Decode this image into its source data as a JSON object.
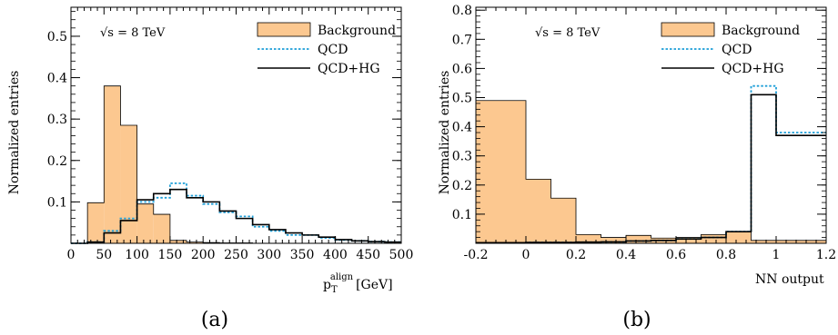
{
  "chart_data": [
    {
      "type": "histogram",
      "panel_label": "(a)",
      "annotation": "√s = 8 TeV",
      "xlabel": "p_T^align [GeV]",
      "xlabel_main": "p",
      "xlabel_sub": "T",
      "xlabel_sup": "align",
      "xlabel_unit": "[GeV]",
      "ylabel": "Normalized entries",
      "xlim": [
        0,
        500
      ],
      "ylim": [
        0,
        0.57
      ],
      "x_ticks": [
        "0",
        "50",
        "100",
        "150",
        "200",
        "250",
        "300",
        "350",
        "400",
        "450",
        "500"
      ],
      "y_ticks": [
        "0.1",
        "0.2",
        "0.3",
        "0.4",
        "0.5"
      ],
      "y_tick_values": [
        0.1,
        0.2,
        0.3,
        0.4,
        0.5
      ],
      "x_tick_values": [
        0,
        50,
        100,
        150,
        200,
        250,
        300,
        350,
        400,
        450,
        500
      ],
      "bin_edges": [
        0,
        25,
        50,
        75,
        100,
        125,
        150,
        175,
        200,
        225,
        250,
        275,
        300,
        325,
        350,
        375,
        400,
        425,
        450,
        475,
        500
      ],
      "legend_position": "top-right",
      "series": [
        {
          "name": "Background",
          "style": "filled",
          "color": "#fcc890",
          "values": [
            0.0,
            0.098,
            0.38,
            0.285,
            0.095,
            0.07,
            0.007,
            0.003,
            0.002,
            0.001,
            0.001,
            0.0,
            0.0,
            0.0,
            0.0,
            0.0,
            0.0,
            0.0,
            0.0,
            0.0
          ]
        },
        {
          "name": "QCD",
          "style": "dotted",
          "color": "#1f9fd8",
          "values": [
            0.0,
            0.003,
            0.03,
            0.06,
            0.1,
            0.11,
            0.145,
            0.115,
            0.095,
            0.075,
            0.065,
            0.04,
            0.03,
            0.02,
            0.02,
            0.013,
            0.008,
            0.006,
            0.004,
            0.003
          ]
        },
        {
          "name": "QCD+HG",
          "style": "solid",
          "color": "#000000",
          "values": [
            0.0,
            0.003,
            0.025,
            0.055,
            0.105,
            0.12,
            0.13,
            0.11,
            0.1,
            0.078,
            0.06,
            0.045,
            0.033,
            0.025,
            0.02,
            0.015,
            0.009,
            0.006,
            0.004,
            0.003
          ]
        }
      ]
    },
    {
      "type": "histogram",
      "panel_label": "(b)",
      "annotation": "√s = 8 TeV",
      "xlabel": "NN output",
      "ylabel": "Normalized entries",
      "xlim": [
        -0.2,
        1.2
      ],
      "ylim": [
        0,
        0.81
      ],
      "x_ticks": [
        "-0.2",
        "0",
        "0.2",
        "0.4",
        "0.6",
        "0.8",
        "1",
        "1.2"
      ],
      "x_tick_values": [
        -0.2,
        0,
        0.2,
        0.4,
        0.6,
        0.8,
        1,
        1.2
      ],
      "y_ticks": [
        "0.1",
        "0.2",
        "0.3",
        "0.4",
        "0.5",
        "0.6",
        "0.7",
        "0.8"
      ],
      "y_tick_values": [
        0.1,
        0.2,
        0.3,
        0.4,
        0.5,
        0.6,
        0.7,
        0.8
      ],
      "bin_edges": [
        -0.2,
        -0.1,
        0.0,
        0.1,
        0.2,
        0.3,
        0.4,
        0.5,
        0.6,
        0.7,
        0.8,
        0.9,
        1.0,
        1.2
      ],
      "legend_position": "top-right",
      "series": [
        {
          "name": "Background",
          "style": "filled",
          "color": "#fcc890",
          "values": [
            0.49,
            0.49,
            0.22,
            0.155,
            0.03,
            0.02,
            0.027,
            0.018,
            0.02,
            0.03,
            0.04,
            0.01,
            0.01
          ]
        },
        {
          "name": "QCD",
          "style": "dotted",
          "color": "#1f9fd8",
          "values": [
            0.002,
            0.002,
            0.003,
            0.003,
            0.004,
            0.005,
            0.008,
            0.01,
            0.015,
            0.02,
            0.04,
            0.54,
            0.38
          ]
        },
        {
          "name": "QCD+HG",
          "style": "solid",
          "color": "#000000",
          "values": [
            0.002,
            0.002,
            0.003,
            0.003,
            0.004,
            0.005,
            0.008,
            0.01,
            0.015,
            0.02,
            0.04,
            0.51,
            0.37
          ]
        }
      ]
    }
  ]
}
